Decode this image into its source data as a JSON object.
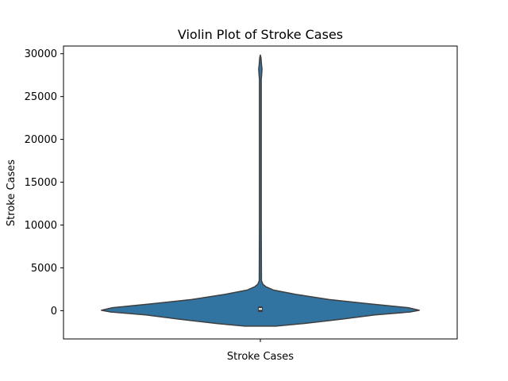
{
  "chart_data": {
    "type": "violin",
    "title": "Violin Plot of Stroke Cases",
    "xlabel": "",
    "ylabel": "Stroke Cases",
    "categories": [
      "Stroke Cases"
    ],
    "ylim": [
      -3300,
      30900
    ],
    "yticks": [
      0,
      5000,
      10000,
      15000,
      20000,
      25000,
      30000
    ],
    "ytick_labels": [
      "0",
      "5000",
      "10000",
      "15000",
      "20000",
      "25000",
      "30000"
    ],
    "grid": false,
    "colors": {
      "violin": "#3274a1",
      "outline": "#3f3f3f",
      "median": "#ffffff"
    },
    "violin": {
      "profile": [
        {
          "y": -1800,
          "w": 0.14
        },
        {
          "y": -1500,
          "w": 0.39
        },
        {
          "y": -1000,
          "w": 0.73
        },
        {
          "y": -500,
          "w": 1.03
        },
        {
          "y": -150,
          "w": 1.35
        },
        {
          "y": 50,
          "w": 1.43
        },
        {
          "y": 350,
          "w": 1.33
        },
        {
          "y": 800,
          "w": 0.98
        },
        {
          "y": 1300,
          "w": 0.62
        },
        {
          "y": 1900,
          "w": 0.32
        },
        {
          "y": 2400,
          "w": 0.12
        },
        {
          "y": 2800,
          "w": 0.05
        },
        {
          "y": 3100,
          "w": 0.022
        },
        {
          "y": 3500,
          "w": 0.01
        },
        {
          "y": 10000,
          "w": 0.008
        },
        {
          "y": 20000,
          "w": 0.008
        },
        {
          "y": 27000,
          "w": 0.008
        },
        {
          "y": 27600,
          "w": 0.012
        },
        {
          "y": 28200,
          "w": 0.015
        },
        {
          "y": 28800,
          "w": 0.01
        },
        {
          "y": 29500,
          "w": 0.006
        },
        {
          "y": 29850,
          "w": 0.0
        }
      ],
      "q1": -150,
      "median": 200,
      "q3": 500
    }
  }
}
